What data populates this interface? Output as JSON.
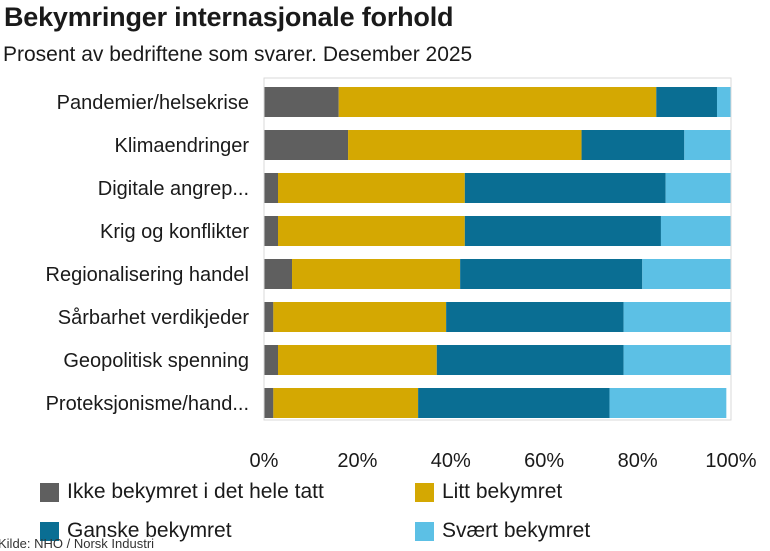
{
  "title": "Bekymringer internasjonale forhold",
  "subtitle": "Prosent av bedriftene som svarer. Desember 2025",
  "source": "Kilde: NHO / Norsk Industri",
  "chart_data": {
    "type": "bar",
    "orientation": "horizontal",
    "stacked": true,
    "title": "Bekymringer internasjonale forhold",
    "subtitle": "Prosent av bedriftene som svarer. Desember 2025",
    "categories": [
      "Pandemier/helsekrise",
      "Klimaendringer",
      "Digitale angrep...",
      "Krig og konflikter",
      "Regionalisering handel",
      "Sårbarhet verdikjeder",
      "Geopolitisk spenning",
      "Proteksjonisme/hand..."
    ],
    "series": [
      {
        "name": "Ikke bekymret i det hele tatt",
        "color": "#5f5f5f",
        "values": [
          16,
          18,
          3,
          3,
          6,
          2,
          3,
          2
        ]
      },
      {
        "name": "Litt bekymret",
        "color": "#d4a802",
        "values": [
          68,
          50,
          40,
          40,
          36,
          37,
          34,
          31
        ]
      },
      {
        "name": "Ganske bekymret",
        "color": "#0a6e93",
        "values": [
          13,
          22,
          43,
          42,
          39,
          38,
          40,
          41
        ]
      },
      {
        "name": "Svært bekymret",
        "color": "#5cc0e5",
        "values": [
          3,
          10,
          14,
          15,
          19,
          23,
          23,
          25
        ]
      }
    ],
    "xlim": [
      0,
      100
    ],
    "xticks": [
      "0%",
      "20%",
      "40%",
      "60%",
      "80%",
      "100%"
    ],
    "xlabel": "",
    "ylabel": "",
    "grid": false,
    "legend_position": "bottom"
  }
}
